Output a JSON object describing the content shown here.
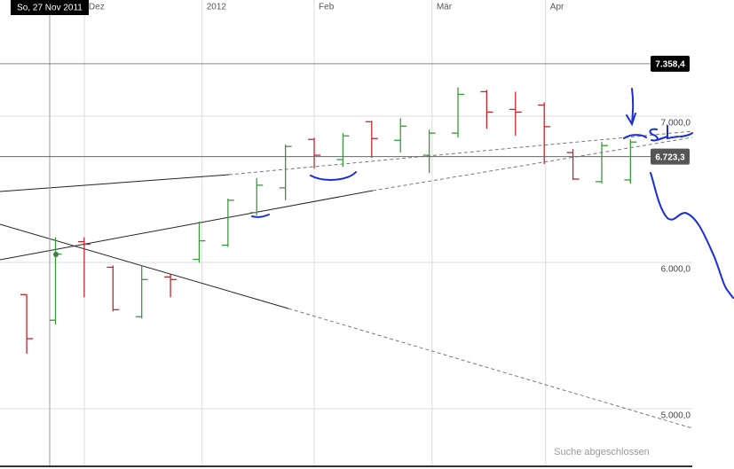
{
  "chart_data": {
    "type": "ohlc",
    "categories": [
      null,
      null,
      null,
      null,
      null,
      null,
      null,
      null,
      null,
      null,
      null,
      null,
      null,
      null,
      null,
      null,
      null,
      null,
      null,
      null,
      null,
      null
    ],
    "open": [
      5780,
      5605,
      6142,
      5967,
      5629,
      5901,
      6021,
      6118,
      6341,
      6510,
      6841,
      6703,
      6962,
      6835,
      6733,
      6884,
      7167,
      7046,
      7076,
      6751,
      6552,
      6564
    ],
    "high": [
      5780,
      6172,
      6172,
      5979,
      5979,
      5919,
      6280,
      6437,
      6576,
      6805,
      6853,
      6884,
      6968,
      6986,
      6908,
      7197,
      7179,
      7167,
      7095,
      6775,
      6823,
      6841
    ],
    "low": [
      5376,
      5575,
      5762,
      5665,
      5617,
      5762,
      5997,
      6106,
      6323,
      6425,
      6642,
      6654,
      6715,
      6751,
      6612,
      6853,
      6914,
      6867,
      6672,
      6564,
      6540,
      6540
    ],
    "close": [
      5479,
      6057,
      6124,
      5677,
      5883,
      5883,
      6148,
      6425,
      6528,
      6793,
      6733,
      6865,
      6847,
      6932,
      6884,
      7149,
      7028,
      7028,
      6928,
      6570,
      6799,
      6823
    ],
    "up_color": "#3a9a3a",
    "down_color": "#c0272d",
    "xlim": [
      -0.93,
      23.15
    ],
    "xticks": [
      {
        "value": 2,
        "label": "Dez"
      },
      {
        "value": 6.1,
        "label": "2012"
      },
      {
        "value": 10,
        "label": "Feb"
      },
      {
        "value": 14.1,
        "label": "Mär"
      },
      {
        "value": 18.05,
        "label": "Apr"
      }
    ],
    "ylim": [
      4588,
      7794
    ],
    "yticks": [
      {
        "value": 5000,
        "label": "5.000,0"
      },
      {
        "value": 6000,
        "label": "6.000,0"
      },
      {
        "value": 7000,
        "label": "7.000,0"
      }
    ],
    "grid": true,
    "price_lines": [
      {
        "value": 7358.4,
        "label": "7.358,4",
        "color": "#000000"
      },
      {
        "value": 6723.3,
        "label": "6.723,3",
        "color": "#555555"
      }
    ],
    "crosshair_label": "So, 27 Nov 2011",
    "status": "Suche abgeschlossen"
  }
}
